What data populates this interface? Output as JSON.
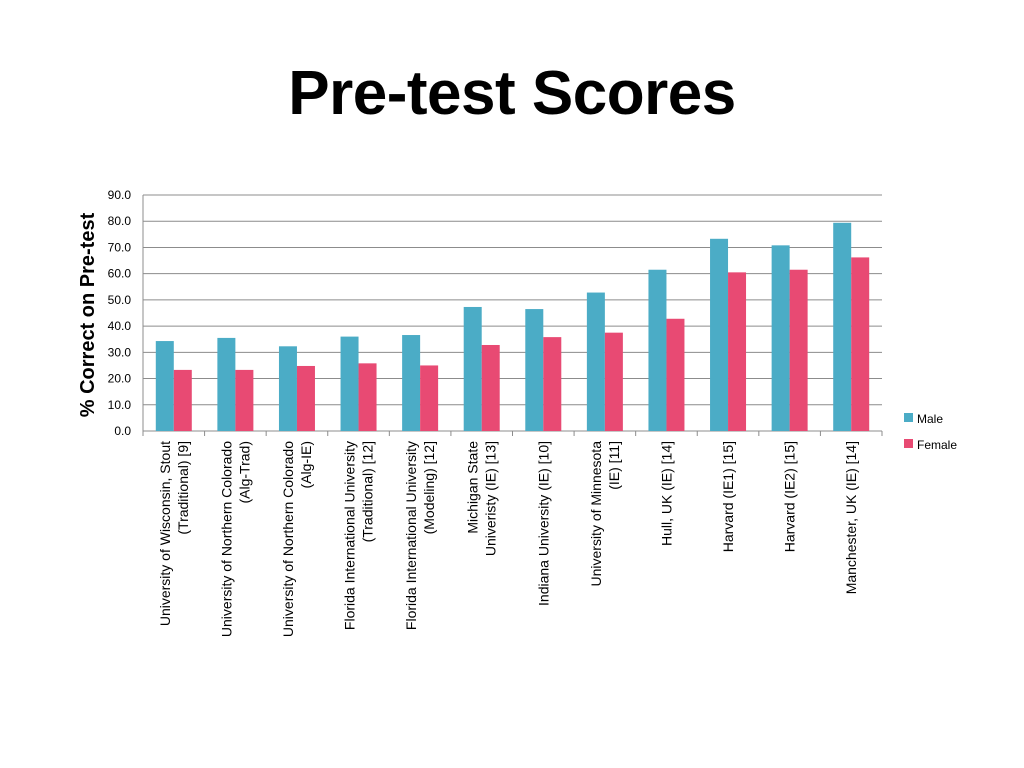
{
  "slide": {
    "title": "Pre-test Scores"
  },
  "chart_data": {
    "type": "bar",
    "title": "",
    "xlabel": "",
    "ylabel": "% Correct on Pre-test",
    "ylim": [
      0,
      90
    ],
    "yticks": [
      "0.0",
      "10.0",
      "20.0",
      "30.0",
      "40.0",
      "50.0",
      "60.0",
      "70.0",
      "80.0",
      "90.0"
    ],
    "grid": true,
    "legend_position": "right",
    "categories": [
      [
        "University of Wisconsin,         Stout",
        "(Traditional) [9]"
      ],
      [
        "University of Northern Colorado",
        "(Alg-Trad)"
      ],
      [
        "University of Northern Colorado",
        "(Alg-IE)"
      ],
      [
        "Florida International University",
        "(Traditional) [12]"
      ],
      [
        "Florida International University",
        "(Modeling) [12]"
      ],
      [
        "Michigan State",
        "Univeristy (IE) [13]"
      ],
      [
        "Indiana University (IE) [10]"
      ],
      [
        "University of              Minnesota",
        "(IE) [11]"
      ],
      [
        "Hull, UK (IE) [14]"
      ],
      [
        "Harvard (IE1) [15]"
      ],
      [
        "Harvard (IE2) [15]"
      ],
      [
        "Manchester, UK (IE) [14]"
      ]
    ],
    "series": [
      {
        "name": "Male",
        "color": "#4BACC6",
        "values": [
          34.3,
          35.5,
          32.3,
          36.0,
          36.6,
          47.3,
          46.5,
          52.8,
          61.5,
          73.3,
          70.8,
          79.4
        ]
      },
      {
        "name": "Female",
        "color": "#E84A73",
        "values": [
          23.3,
          23.3,
          24.8,
          25.8,
          25.0,
          32.8,
          35.8,
          37.5,
          42.8,
          60.5,
          61.5,
          66.2
        ]
      }
    ]
  }
}
